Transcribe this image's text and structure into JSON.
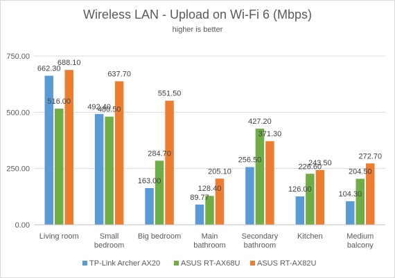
{
  "chart_data": {
    "type": "bar",
    "title": "Wireless LAN - Upload on Wi-Fi 6 (Mbps)",
    "subtitle": "higher is better",
    "xlabel": "",
    "ylabel": "",
    "ylim": [
      0,
      750
    ],
    "yticks": [
      "0.00",
      "250.00",
      "500.00",
      "750.00"
    ],
    "ytick_values": [
      0,
      250,
      500,
      750
    ],
    "grid": true,
    "legend_position": "bottom",
    "categories": [
      [
        "Living room"
      ],
      [
        "Small",
        "bedroom"
      ],
      [
        "Big bedroom"
      ],
      [
        "Main",
        "bathroom"
      ],
      [
        "Secondary",
        "bathroom"
      ],
      [
        "Kitchen"
      ],
      [
        "Medium",
        "balcony"
      ]
    ],
    "series": [
      {
        "name": "TP-Link Archer AX20",
        "color": "#5b9bd5",
        "values": [
          662.3,
          492.4,
          163.0,
          89.77,
          256.5,
          126.0,
          104.3
        ],
        "labels": [
          "662.30",
          "492.40",
          "163.00",
          "89.77",
          "256.50",
          "126.00",
          "104.30"
        ]
      },
      {
        "name": "ASUS RT-AX68U",
        "color": "#70ad47",
        "values": [
          516.0,
          480.5,
          284.7,
          128.4,
          427.2,
          226.6,
          204.5
        ],
        "labels": [
          "516.00",
          "480.50",
          "284.70",
          "128.40",
          "427.20",
          "226.60",
          "204.50"
        ]
      },
      {
        "name": "ASUS RT-AX82U",
        "color": "#ed7d31",
        "values": [
          688.1,
          637.7,
          551.5,
          205.1,
          371.3,
          243.5,
          272.7
        ],
        "labels": [
          "688.10",
          "637.70",
          "551.50",
          "205.10",
          "371.30",
          "243.50",
          "272.70"
        ]
      }
    ]
  }
}
